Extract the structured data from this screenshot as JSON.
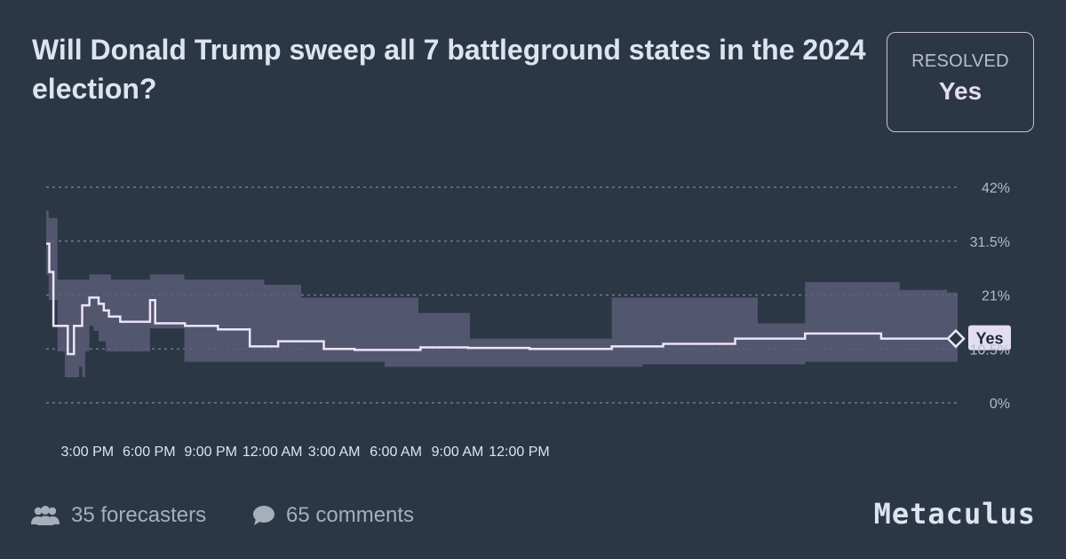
{
  "question": {
    "title": "Will Donald Trump sweep all 7 battleground states in the 2024 election?"
  },
  "resolution": {
    "label": "RESOLVED",
    "value": "Yes"
  },
  "footer": {
    "forecasters": "35 forecasters",
    "comments": "65 comments",
    "brand": "Metaculus"
  },
  "colors": {
    "background": "#2c3746",
    "band": "#5a5c77",
    "line": "#ece4f7",
    "grid": "#7c8796"
  },
  "chart_data": {
    "type": "line",
    "x_tick_labels": [
      "3:00 PM",
      "6:00 PM",
      "9:00 PM",
      "12:00 AM",
      "3:00 AM",
      "6:00 AM",
      "9:00 AM",
      "12:00 PM"
    ],
    "y_tick_labels": [
      "42%",
      "31.5%",
      "21%",
      "10.5%",
      "0%"
    ],
    "ylim": [
      0,
      42
    ],
    "grid": true,
    "end_marker_label": "Yes",
    "series": [
      {
        "x": [
          0,
          0.15,
          0.35,
          0.6,
          1.05,
          1.35,
          1.75,
          2.1,
          2.55,
          2.8,
          3.05,
          3.6,
          5.05,
          5.3,
          6.75,
          8.35,
          8.72,
          9.9,
          10.6,
          11.28,
          12.4,
          13.5,
          15.0,
          18.2,
          20.5,
          23.5,
          25.3,
          27.5,
          30.0,
          33.5,
          36.9,
          40.6,
          43.8
        ],
        "y": [
          31,
          25.5,
          15,
          15,
          9.5,
          15,
          19,
          20.5,
          19.3,
          18,
          16.8,
          15.8,
          20,
          15.5,
          15,
          14.3,
          14.3,
          11,
          11,
          12,
          12,
          10.5,
          10.3,
          10.8,
          10.7,
          10.5,
          10.5,
          11,
          11.5,
          12.5,
          13.5,
          12.5,
          12.5
        ]
      }
    ],
    "uncertainty_band": {
      "x": [
        0,
        0.12,
        0.55,
        0.9,
        1.6,
        1.75,
        1.9,
        2.1,
        2.3,
        2.55,
        2.9,
        3.15,
        3.6,
        4.0,
        4.35,
        5.05,
        6.72,
        10.6,
        11.28,
        12.4,
        15.55,
        16.45,
        18.1,
        20.6,
        23.2,
        27.5,
        29.0,
        34.6,
        36.9,
        41.5,
        43.8
      ],
      "low": [
        25,
        20,
        10,
        5,
        7,
        5,
        10,
        15,
        14,
        12,
        10,
        10,
        10,
        10,
        10,
        14.5,
        8,
        8,
        8,
        8,
        8,
        7,
        7,
        7,
        7,
        7,
        7.5,
        7.5,
        8,
        8,
        8
      ],
      "high": [
        37.5,
        36,
        24,
        24,
        24,
        24,
        24,
        25,
        25,
        25,
        25,
        24,
        24,
        24,
        24,
        25,
        24,
        23,
        23,
        20.5,
        20.5,
        20.5,
        17.5,
        12.5,
        12.5,
        20.5,
        20.5,
        15.5,
        23.5,
        22,
        21.5
      ]
    }
  }
}
